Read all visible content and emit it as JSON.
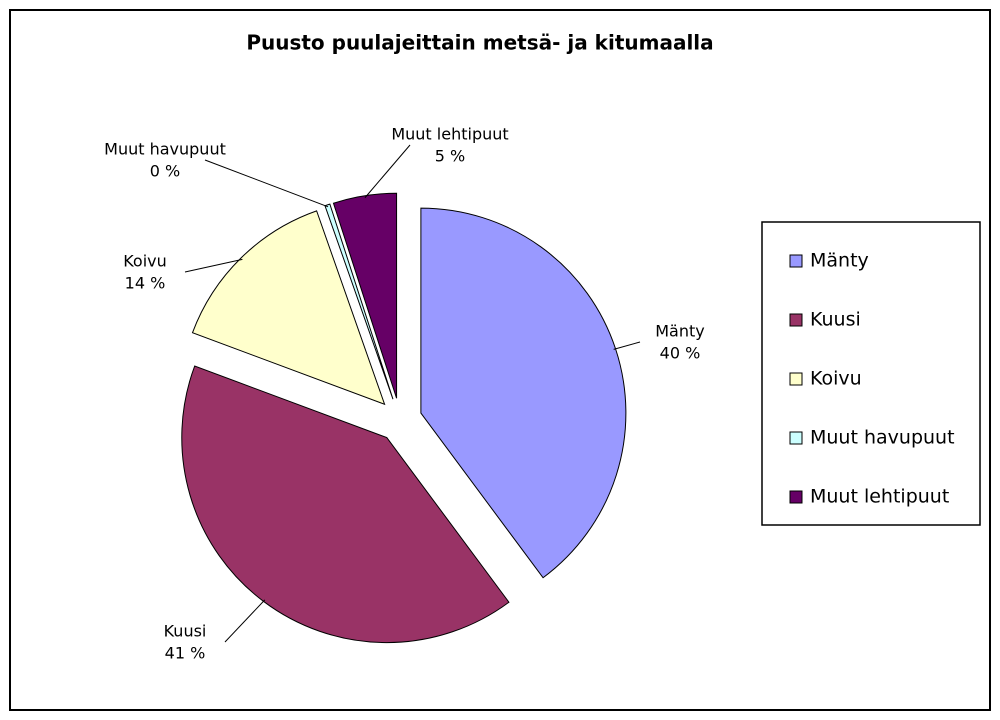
{
  "chart_data": {
    "type": "pie",
    "title": "Puusto puulajeittain metsä- ja kitumaalla",
    "categories": [
      "Mänty",
      "Kuusi",
      "Koivu",
      "Muut havupuut",
      "Muut lehtipuut"
    ],
    "values": [
      40,
      41,
      14,
      0.4,
      5
    ],
    "value_labels": [
      "40 %",
      "41 %",
      "14 %",
      "0 %",
      "5 %"
    ],
    "colors": [
      "#9999ff",
      "#993366",
      "#ffffcc",
      "#ccffff",
      "#660066"
    ],
    "legend": "right"
  }
}
